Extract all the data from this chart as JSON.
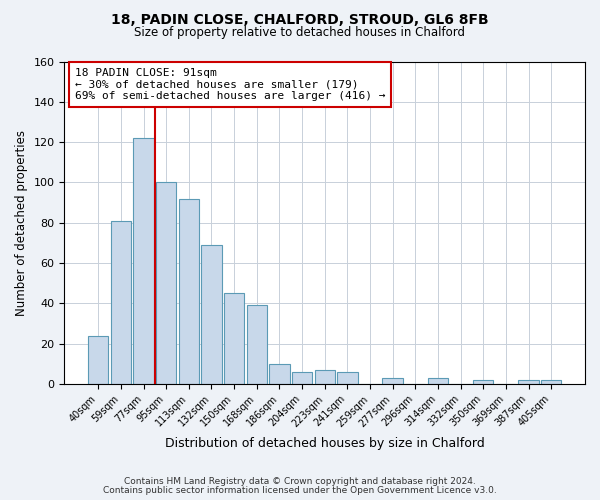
{
  "title": "18, PADIN CLOSE, CHALFORD, STROUD, GL6 8FB",
  "subtitle": "Size of property relative to detached houses in Chalford",
  "xlabel": "Distribution of detached houses by size in Chalford",
  "ylabel": "Number of detached properties",
  "bar_labels": [
    "40sqm",
    "59sqm",
    "77sqm",
    "95sqm",
    "113sqm",
    "132sqm",
    "150sqm",
    "168sqm",
    "186sqm",
    "204sqm",
    "223sqm",
    "241sqm",
    "259sqm",
    "277sqm",
    "296sqm",
    "314sqm",
    "332sqm",
    "350sqm",
    "369sqm",
    "387sqm",
    "405sqm"
  ],
  "bar_values": [
    24,
    81,
    122,
    100,
    92,
    69,
    45,
    39,
    10,
    6,
    7,
    6,
    0,
    3,
    0,
    3,
    0,
    2,
    0,
    2,
    2
  ],
  "bar_color": "#c8d8ea",
  "bar_edge_color": "#5b9ab5",
  "vline_color": "#cc0000",
  "vline_position": 2.5,
  "ylim": [
    0,
    160
  ],
  "yticks": [
    0,
    20,
    40,
    60,
    80,
    100,
    120,
    140,
    160
  ],
  "annotation_title": "18 PADIN CLOSE: 91sqm",
  "annotation_line1": "← 30% of detached houses are smaller (179)",
  "annotation_line2": "69% of semi-detached houses are larger (416) →",
  "footer1": "Contains HM Land Registry data © Crown copyright and database right 2024.",
  "footer2": "Contains public sector information licensed under the Open Government Licence v3.0.",
  "bg_color": "#eef2f7",
  "plot_bg_color": "#ffffff",
  "grid_color": "#c8d0da"
}
